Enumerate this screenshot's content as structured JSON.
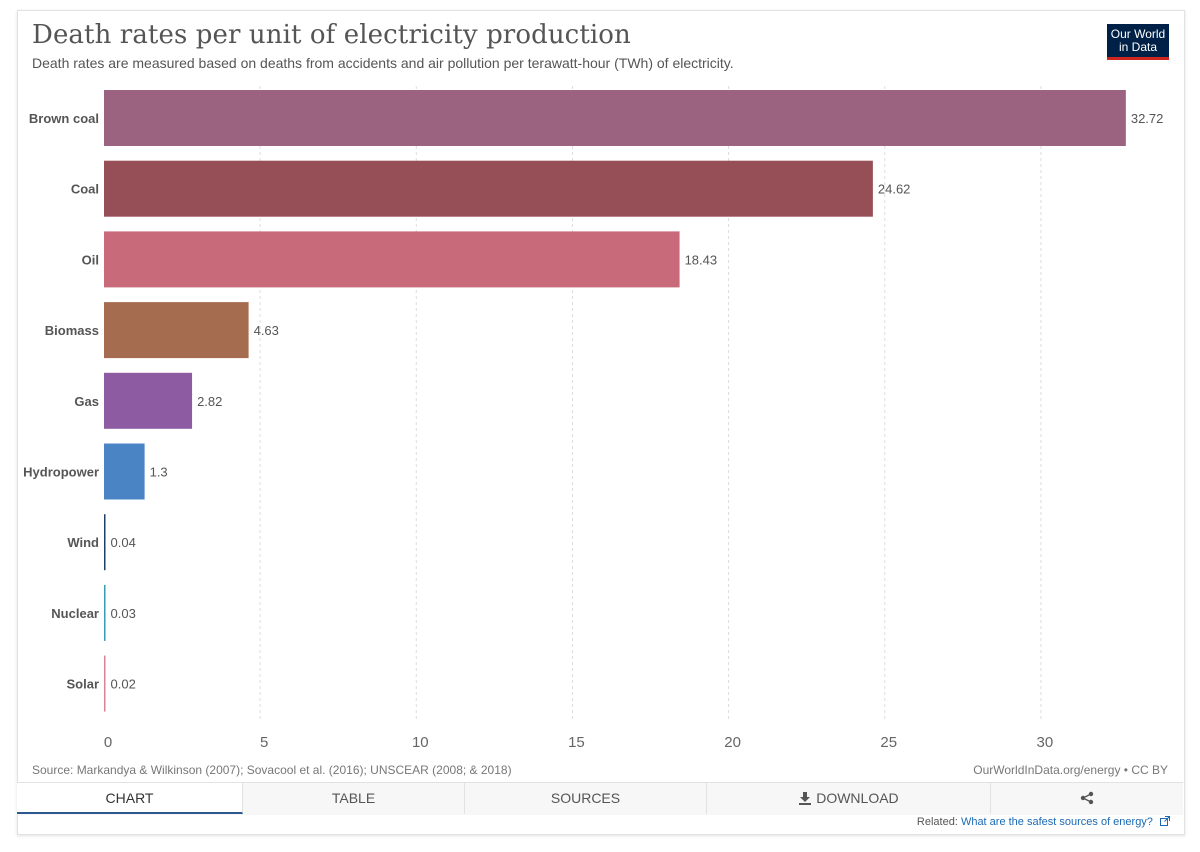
{
  "header": {
    "title": "Death rates per unit of electricity production",
    "subtitle": "Death rates are measured based on deaths from accidents and air pollution per terawatt-hour (TWh) of electricity.",
    "logo_line1": "Our World",
    "logo_line2": "in Data"
  },
  "chart_data": {
    "type": "bar",
    "orientation": "horizontal",
    "categories": [
      "Brown coal",
      "Coal",
      "Oil",
      "Biomass",
      "Gas",
      "Hydropower",
      "Wind",
      "Nuclear",
      "Solar"
    ],
    "values": [
      32.72,
      24.62,
      18.43,
      4.63,
      2.82,
      1.3,
      0.04,
      0.03,
      0.02
    ],
    "value_labels": [
      "32.72",
      "24.62",
      "18.43",
      "4.63",
      "2.82",
      "1.3",
      "0.04",
      "0.03",
      "0.02"
    ],
    "colors": [
      "#9c6380",
      "#974f57",
      "#c86a79",
      "#a56c50",
      "#8c5ba1",
      "#4b84c5",
      "#1e3f66",
      "#3a9cb0",
      "#d78591"
    ],
    "xlim": [
      0,
      34
    ],
    "xticks": [
      0,
      5,
      10,
      15,
      20,
      25,
      30
    ],
    "grid": true
  },
  "footer": {
    "source": "Source: Markandya & Wilkinson (2007); Sovacool et al. (2016); UNSCEAR (2008; & 2018)",
    "license": "OurWorldInData.org/energy • CC BY"
  },
  "tabs": {
    "chart": "CHART",
    "table": "TABLE",
    "sources": "SOURCES",
    "download": "DOWNLOAD",
    "share_icon": "share-icon",
    "download_icon": "download-icon"
  },
  "related": {
    "label": "Related:",
    "link": "What are the safest sources of energy?"
  }
}
